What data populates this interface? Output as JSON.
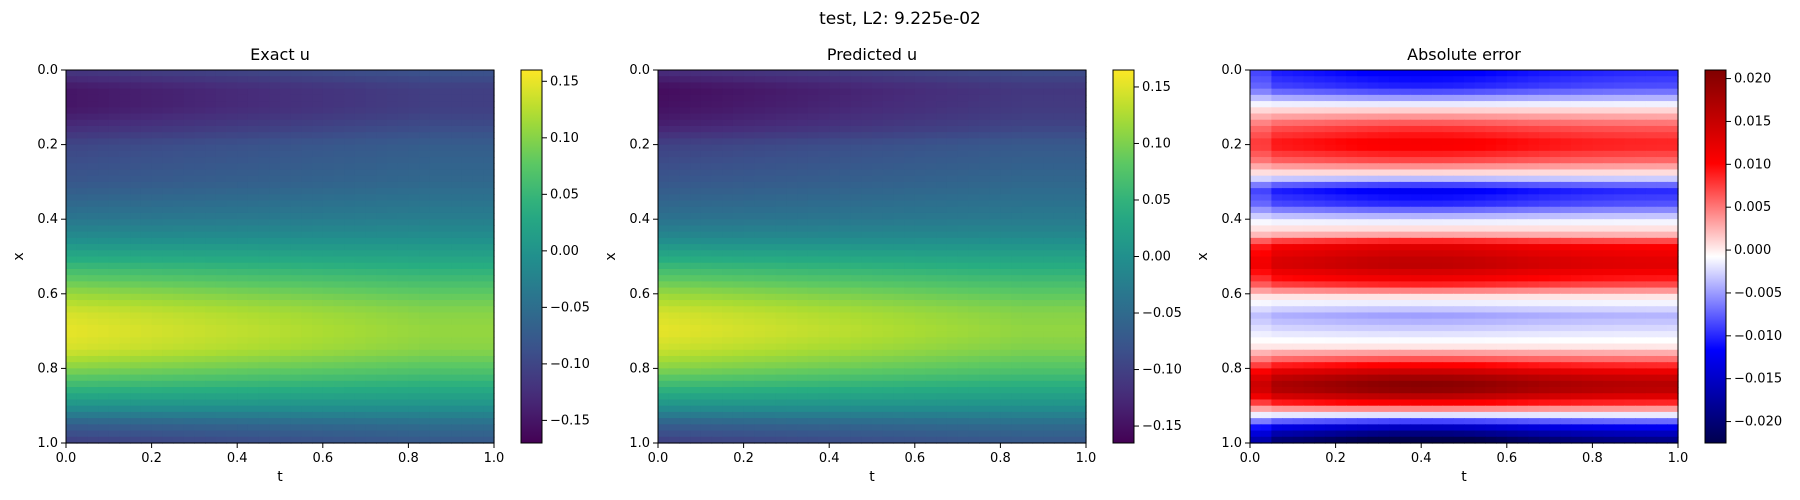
{
  "figure": {
    "suptitle": "test, L2: 9.225e-02"
  },
  "chart_data": [
    {
      "type": "heatmap",
      "title": "Exact u",
      "xlabel": "t",
      "ylabel": "x",
      "xlim": [
        0.0,
        1.0
      ],
      "ylim": [
        1.0,
        0.0
      ],
      "x_ticks": [
        "0.0",
        "0.2",
        "0.4",
        "0.6",
        "0.8",
        "1.0"
      ],
      "y_ticks": [
        "0.0",
        "0.2",
        "0.4",
        "0.6",
        "0.8",
        "1.0"
      ],
      "colormap": "viridis",
      "clim": [
        -0.17,
        0.16
      ],
      "colorbar_ticks": [
        "0.15",
        "0.10",
        "0.05",
        "0.00",
        "−0.05",
        "−0.10",
        "−0.15"
      ],
      "colorbar_values": [
        0.15,
        0.1,
        0.05,
        0.0,
        -0.05,
        -0.1,
        -0.15
      ],
      "x_samples": [
        0.0,
        0.1,
        0.2,
        0.4,
        0.6,
        0.8,
        1.0
      ],
      "profiles": [
        [
          0.0,
          -0.115
        ],
        [
          0.05,
          -0.15
        ],
        [
          0.1,
          -0.15
        ],
        [
          0.15,
          -0.13
        ],
        [
          0.2,
          -0.1
        ],
        [
          0.3,
          -0.08
        ],
        [
          0.4,
          -0.04
        ],
        [
          0.45,
          -0.01
        ],
        [
          0.5,
          0.03
        ],
        [
          0.55,
          0.07
        ],
        [
          0.6,
          0.11
        ],
        [
          0.65,
          0.14
        ],
        [
          0.7,
          0.15
        ],
        [
          0.75,
          0.14
        ],
        [
          0.8,
          0.1
        ],
        [
          0.85,
          0.05
        ],
        [
          0.9,
          0.0
        ],
        [
          0.95,
          -0.07
        ],
        [
          1.0,
          -0.11
        ]
      ]
    },
    {
      "type": "heatmap",
      "title": "Predicted u",
      "xlabel": "t",
      "ylabel": "x",
      "xlim": [
        0.0,
        1.0
      ],
      "ylim": [
        1.0,
        0.0
      ],
      "x_ticks": [
        "0.0",
        "0.2",
        "0.4",
        "0.6",
        "0.8",
        "1.0"
      ],
      "y_ticks": [
        "0.0",
        "0.2",
        "0.4",
        "0.6",
        "0.8",
        "1.0"
      ],
      "colormap": "viridis",
      "clim": [
        -0.165,
        0.165
      ],
      "colorbar_ticks": [
        "0.15",
        "0.10",
        "0.05",
        "0.00",
        "−0.05",
        "−0.10",
        "−0.15"
      ],
      "colorbar_values": [
        0.15,
        0.1,
        0.05,
        0.0,
        -0.05,
        -0.1,
        -0.15
      ],
      "profiles": [
        [
          0.0,
          -0.12
        ],
        [
          0.05,
          -0.155
        ],
        [
          0.1,
          -0.15
        ],
        [
          0.15,
          -0.135
        ],
        [
          0.2,
          -0.1
        ],
        [
          0.3,
          -0.075
        ],
        [
          0.4,
          -0.04
        ],
        [
          0.45,
          -0.01
        ],
        [
          0.5,
          0.035
        ],
        [
          0.55,
          0.075
        ],
        [
          0.6,
          0.115
        ],
        [
          0.65,
          0.145
        ],
        [
          0.7,
          0.155
        ],
        [
          0.75,
          0.14
        ],
        [
          0.8,
          0.105
        ],
        [
          0.85,
          0.055
        ],
        [
          0.9,
          0.005
        ],
        [
          0.95,
          -0.065
        ],
        [
          1.0,
          -0.105
        ]
      ]
    },
    {
      "type": "heatmap",
      "title": "Absolute error",
      "xlabel": "t",
      "ylabel": "x",
      "xlim": [
        0.0,
        1.0
      ],
      "ylim": [
        1.0,
        0.0
      ],
      "x_ticks": [
        "0.0",
        "0.2",
        "0.4",
        "0.6",
        "0.8",
        "1.0"
      ],
      "y_ticks": [
        "0.0",
        "0.2",
        "0.4",
        "0.6",
        "0.8",
        "1.0"
      ],
      "colormap": "seismic",
      "clim": [
        -0.0225,
        0.021
      ],
      "colorbar_ticks": [
        "0.020",
        "0.015",
        "0.010",
        "0.005",
        "0.000",
        "−0.005",
        "−0.010",
        "−0.015",
        "−0.020"
      ],
      "colorbar_values": [
        0.02,
        0.015,
        0.01,
        0.005,
        0.0,
        -0.005,
        -0.01,
        -0.015,
        -0.02
      ],
      "bands": [
        [
          0.0,
          -0.01
        ],
        [
          0.05,
          -0.008
        ],
        [
          0.1,
          0.0
        ],
        [
          0.15,
          0.006
        ],
        [
          0.2,
          0.009
        ],
        [
          0.24,
          0.006
        ],
        [
          0.28,
          0.0
        ],
        [
          0.32,
          -0.01
        ],
        [
          0.36,
          -0.008
        ],
        [
          0.4,
          -0.002
        ],
        [
          0.44,
          0.002
        ],
        [
          0.47,
          0.01
        ],
        [
          0.52,
          0.013
        ],
        [
          0.57,
          0.008
        ],
        [
          0.61,
          0.0
        ],
        [
          0.66,
          -0.004
        ],
        [
          0.7,
          -0.002
        ],
        [
          0.74,
          0.0
        ],
        [
          0.78,
          0.006
        ],
        [
          0.82,
          0.014
        ],
        [
          0.85,
          0.017
        ],
        [
          0.88,
          0.012
        ],
        [
          0.92,
          0.0
        ],
        [
          0.96,
          -0.013
        ],
        [
          1.0,
          -0.02
        ]
      ]
    }
  ]
}
